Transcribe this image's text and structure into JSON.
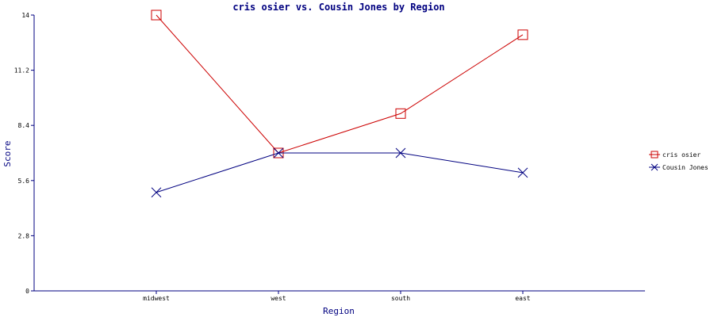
{
  "chart_data": {
    "type": "line",
    "title": "cris osier vs. Cousin Jones by Region",
    "xlabel": "Region",
    "ylabel": "Score",
    "categories": [
      "midwest",
      "west",
      "south",
      "east"
    ],
    "ylim": [
      0,
      14
    ],
    "yticks": [
      "0",
      "2.8",
      "5.6",
      "8.4",
      "11.2",
      "14"
    ],
    "legend_position": "right",
    "grid": false,
    "series": [
      {
        "name": "cris osier",
        "values": [
          14,
          7,
          9,
          13
        ],
        "color": "#cc0000",
        "marker": "square"
      },
      {
        "name": "Cousin Jones",
        "values": [
          5,
          7,
          7,
          6
        ],
        "color": "#000080",
        "marker": "x"
      }
    ]
  }
}
